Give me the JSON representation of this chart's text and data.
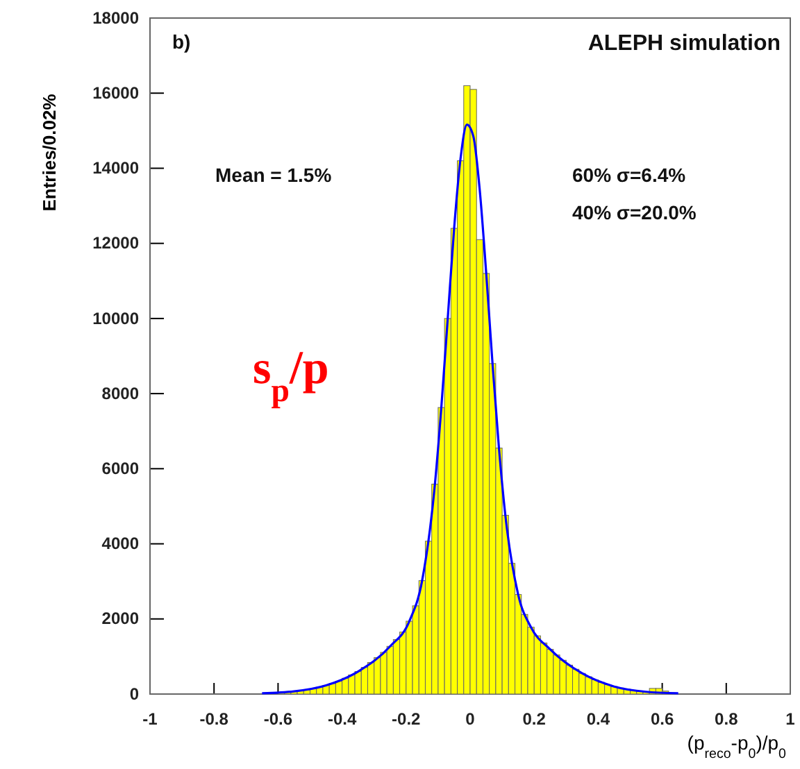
{
  "chart_data": {
    "type": "histogram",
    "ylabel": "Entries/0.02%",
    "xlabel": "(p$_{reco}$-p$_{0}$)/p$_{0}$",
    "bins": [
      -0.66,
      -0.64,
      -0.62,
      -0.6,
      -0.58,
      -0.56,
      -0.54,
      -0.52,
      -0.5,
      -0.48,
      -0.46,
      -0.44,
      -0.42,
      -0.4,
      -0.38,
      -0.36,
      -0.34,
      -0.32,
      -0.3,
      -0.28,
      -0.26,
      -0.24,
      -0.22,
      -0.2,
      -0.18,
      -0.16,
      -0.14,
      -0.12,
      -0.1,
      -0.08,
      -0.06,
      -0.04,
      -0.02,
      0,
      0.02,
      0.04,
      0.06,
      0.08,
      0.1,
      0.12,
      0.14,
      0.16,
      0.18,
      0.2,
      0.22,
      0.24,
      0.26,
      0.28,
      0.3,
      0.32,
      0.34,
      0.36,
      0.38,
      0.4,
      0.42,
      0.44,
      0.46,
      0.48,
      0.5,
      0.52,
      0.54,
      0.56,
      0.58,
      0.6,
      0.62,
      0.64,
      0.66
    ],
    "values": [
      null,
      20,
      null,
      40,
      50,
      70,
      90,
      110,
      140,
      180,
      230,
      280,
      340,
      420,
      510,
      600,
      710,
      840,
      970,
      1110,
      1270,
      1450,
      1650,
      1940,
      2350,
      3020,
      4070,
      5590,
      7630,
      10000,
      12400,
      14200,
      16200,
      16100,
      12100,
      11200,
      8800,
      6550,
      4760,
      3480,
      2650,
      2120,
      1780,
      1550,
      1360,
      1190,
      1040,
      900,
      770,
      660,
      550,
      460,
      380,
      310,
      250,
      200,
      160,
      130,
      100,
      80,
      60,
      150,
      150,
      80,
      null,
      null
    ],
    "color": "#ffff00",
    "series": [
      {
        "type": "line",
        "color": "#0000ff",
        "x": [
          -0.65,
          -0.55,
          -0.45,
          -0.35,
          -0.25,
          -0.19,
          -0.15,
          -0.11,
          -0.09,
          -0.07,
          -0.05,
          -0.03,
          -0.01,
          0.01,
          0.03,
          0.05,
          0.07,
          0.09,
          0.11,
          0.15,
          0.19,
          0.25,
          0.35,
          0.45,
          0.55,
          0.65
        ],
        "values": [
          20,
          70,
          230,
          600,
          1270,
          1940,
          3020,
          5590,
          7630,
          10000,
          12400,
          14260,
          15160,
          14850,
          13420,
          11230,
          8790,
          6550,
          4760,
          2650,
          1780,
          1190,
          550,
          200,
          60,
          20
        ]
      }
    ],
    "xlim": [
      -1,
      1
    ],
    "xticks": [
      -1,
      -0.8,
      -0.6,
      -0.4,
      -0.2,
      0,
      0.2,
      0.4,
      0.6,
      0.8,
      1
    ],
    "ylim": [
      0,
      18000
    ],
    "yticks": [
      0,
      2000,
      4000,
      6000,
      8000,
      10000,
      12000,
      14000,
      16000,
      18000
    ],
    "annotations": [
      "b)",
      "ALEPH simulation",
      "Mean = 1.5%",
      "60%  σ=6.4%",
      "40%  σ=20.0%",
      "s$_{p}$/p"
    ]
  }
}
